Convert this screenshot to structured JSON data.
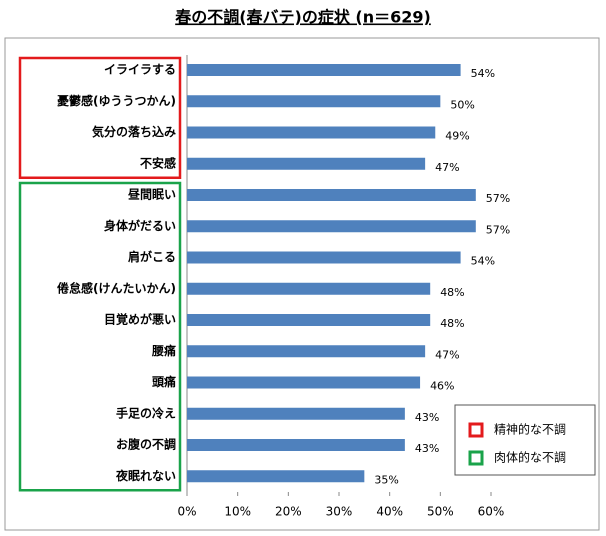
{
  "chart_data": {
    "type": "hbar",
    "title": "春の不調(春バテ)の症状 (n＝629)",
    "categories": [
      "イライラする",
      "憂鬱感(ゆううつかん)",
      "気分の落ち込み",
      "不安感",
      "昼間眠い",
      "身体がだるい",
      "肩がこる",
      "倦怠感(けんたいかん)",
      "目覚めが悪い",
      "腰痛",
      "頭痛",
      "手足の冷え",
      "お腹の不調",
      "夜眠れない"
    ],
    "values": [
      54,
      50,
      49,
      47,
      57,
      57,
      54,
      48,
      48,
      47,
      46,
      43,
      43,
      35
    ],
    "value_labels": [
      "54%",
      "50%",
      "49%",
      "47%",
      "57%",
      "57%",
      "54%",
      "48%",
      "48%",
      "47%",
      "46%",
      "43%",
      "43%",
      "35%"
    ],
    "color": "#4f81bd",
    "xlim": [
      0,
      60
    ],
    "xticks": [
      {
        "value": 0,
        "label": "0%"
      },
      {
        "value": 10,
        "label": "10%"
      },
      {
        "value": 20,
        "label": "20%"
      },
      {
        "value": 30,
        "label": "30%"
      },
      {
        "value": 40,
        "label": "40%"
      },
      {
        "value": 50,
        "label": "50%"
      },
      {
        "value": 60,
        "label": "60%"
      }
    ],
    "grid": false,
    "legend": "bottom-right",
    "groups": [
      {
        "name": "精神的な不調",
        "color": "#e31a1c",
        "range": [
          0,
          3
        ]
      },
      {
        "name": "肉体的な不調",
        "color": "#1aa34a",
        "range": [
          4,
          13
        ]
      }
    ]
  }
}
